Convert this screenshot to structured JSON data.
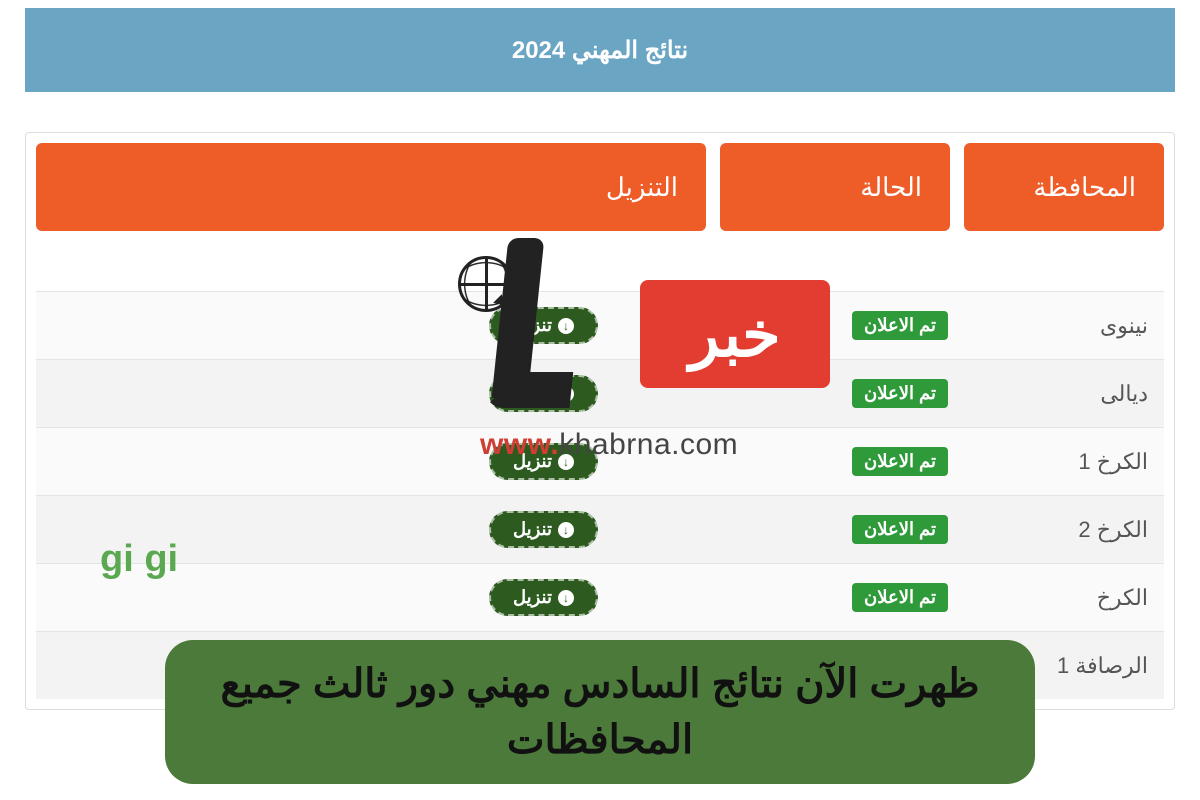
{
  "colors": {
    "banner_bg": "#6aa6c4",
    "banner_text": "#ffffff",
    "header_cell_bg": "#ee5c28",
    "header_cell_text": "#ffffff",
    "badge_bg": "#2f9a3a",
    "badge_text": "#ffffff",
    "download_btn_bg": "#2d5b1f",
    "download_btn_text": "#ffffff",
    "wm_logo_bg": "#e33d32",
    "headline_bg": "#4c7a3b",
    "gigi_text": "#5aa84f"
  },
  "banner": {
    "title": "نتائج المهني 2024"
  },
  "table": {
    "headers": {
      "governorate": "المحافظة",
      "status": "الحالة",
      "download": "التنزيل"
    },
    "status_label": "تم الاعلان",
    "download_label": "تنزيل",
    "rows": [
      {
        "gov": "نينوى"
      },
      {
        "gov": "ديالى"
      },
      {
        "gov": "الكرخ 1"
      },
      {
        "gov": "الكرخ 2"
      },
      {
        "gov": "الكرخ"
      },
      {
        "gov": "الرصافة 1"
      }
    ]
  },
  "watermark": {
    "arabic_logo": "خبر",
    "url_red": "www.",
    "url_rest": "khabrna.com",
    "gigi": "gi gi"
  },
  "headline": "ظهرت الآن نتائج السادس مهني دور ثالث جميع المحافظات"
}
